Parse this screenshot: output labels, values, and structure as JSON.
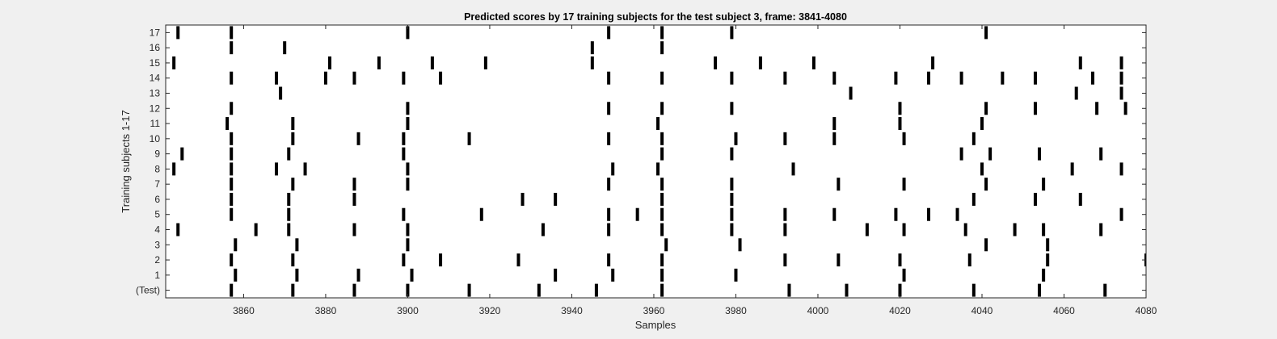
{
  "chart_data": {
    "type": "raster",
    "title": "Predicted scores by 17 training subjects for the test subject 3, frame: 3841-4080",
    "xlabel": "Samples",
    "ylabel": "Training subjects 1-17",
    "xlim": [
      3841,
      4080
    ],
    "x_ticks": [
      3860,
      3880,
      3900,
      3920,
      3940,
      3960,
      3980,
      4000,
      4020,
      4040,
      4060,
      4080
    ],
    "y_ticks": [
      "(Test)",
      "1",
      "2",
      "3",
      "4",
      "5",
      "6",
      "7",
      "8",
      "9",
      "10",
      "11",
      "12",
      "13",
      "14",
      "15",
      "16",
      "17"
    ],
    "grid": false,
    "mark_color": "#000000",
    "rows": [
      {
        "label": "(Test)",
        "events": [
          3857,
          3872,
          3887,
          3900,
          3915,
          3932,
          3946,
          3962,
          3993,
          4007,
          4020,
          4038,
          4054,
          4070
        ]
      },
      {
        "label": "1",
        "events": [
          3858,
          3873,
          3888,
          3901,
          3936,
          3950,
          3962,
          3980,
          4021,
          4055
        ]
      },
      {
        "label": "2",
        "events": [
          3857,
          3872,
          3899,
          3908,
          3927,
          3949,
          3962,
          3992,
          4005,
          4020,
          4037,
          4056,
          4080
        ]
      },
      {
        "label": "3",
        "events": [
          3858,
          3873,
          3900,
          3963,
          3981,
          4041,
          4056
        ]
      },
      {
        "label": "4",
        "events": [
          3844,
          3863,
          3871,
          3887,
          3900,
          3933,
          3949,
          3962,
          3979,
          3992,
          4012,
          4021,
          4036,
          4048,
          4055,
          4069
        ]
      },
      {
        "label": "5",
        "events": [
          3857,
          3871,
          3899,
          3918,
          3949,
          3956,
          3962,
          3979,
          3992,
          4004,
          4019,
          4027,
          4034,
          4074
        ]
      },
      {
        "label": "6",
        "events": [
          3857,
          3871,
          3887,
          3928,
          3936,
          3962,
          3979,
          4038,
          4053,
          4064
        ]
      },
      {
        "label": "7",
        "events": [
          3857,
          3872,
          3887,
          3900,
          3949,
          3962,
          3979,
          4005,
          4021,
          4041,
          4055
        ]
      },
      {
        "label": "8",
        "events": [
          3843,
          3857,
          3868,
          3875,
          3900,
          3950,
          3961,
          3994,
          4040,
          4062,
          4074
        ]
      },
      {
        "label": "9",
        "events": [
          3845,
          3857,
          3871,
          3899,
          3962,
          3979,
          4035,
          4042,
          4054,
          4069
        ]
      },
      {
        "label": "10",
        "events": [
          3857,
          3872,
          3888,
          3899,
          3915,
          3949,
          3962,
          3980,
          3992,
          4004,
          4021,
          4038
        ]
      },
      {
        "label": "11",
        "events": [
          3856,
          3872,
          3900,
          3961,
          4004,
          4020,
          4040
        ]
      },
      {
        "label": "12",
        "events": [
          3857,
          3900,
          3949,
          3962,
          3979,
          4020,
          4041,
          4053,
          4068,
          4075
        ]
      },
      {
        "label": "13",
        "events": [
          3869,
          4008,
          4063,
          4074
        ]
      },
      {
        "label": "14",
        "events": [
          3857,
          3868,
          3880,
          3887,
          3899,
          3908,
          3949,
          3962,
          3979,
          3992,
          4004,
          4019,
          4027,
          4035,
          4045,
          4053,
          4067,
          4074
        ]
      },
      {
        "label": "15",
        "events": [
          3843,
          3881,
          3893,
          3906,
          3919,
          3945,
          3975,
          3986,
          3999,
          4028,
          4064,
          4074
        ]
      },
      {
        "label": "16",
        "events": [
          3857,
          3870,
          3945,
          3962
        ]
      },
      {
        "label": "17",
        "events": [
          3844,
          3857,
          3900,
          3949,
          3962,
          3979,
          4041
        ]
      }
    ]
  }
}
